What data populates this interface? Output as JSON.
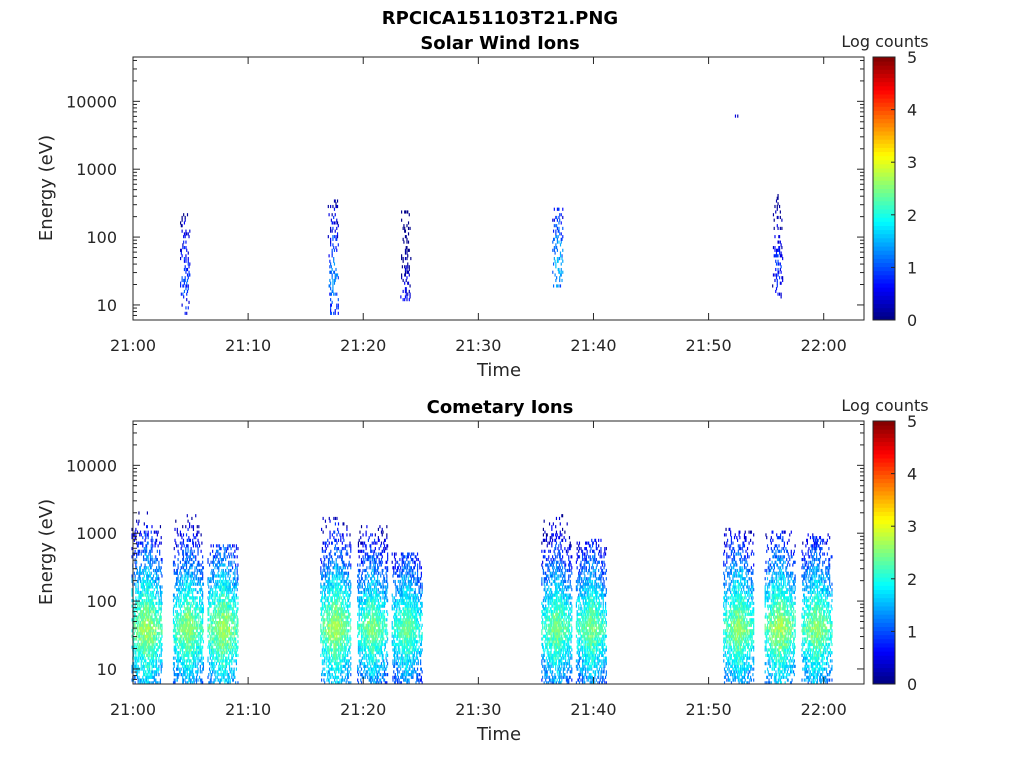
{
  "figure": {
    "title": "RPCICA151103T21.PNG"
  },
  "chart_data": [
    {
      "type": "heatmap",
      "title": "Solar Wind Ions",
      "xlabel": "Time",
      "ylabel": "Energy (eV)",
      "x_ticks": [
        "21:00",
        "21:10",
        "21:20",
        "21:30",
        "21:40",
        "21:50",
        "22:00"
      ],
      "x_range_minutes": [
        0,
        63.5
      ],
      "y_scale": "log",
      "y_ticks": [
        "10",
        "100",
        "1000",
        "10000"
      ],
      "y_range": [
        6,
        45000
      ],
      "grid": false,
      "colorbar": {
        "label": "Log counts",
        "range": [
          0,
          5
        ],
        "ticks": [
          "0",
          "1",
          "2",
          "3",
          "4",
          "5"
        ],
        "colormap": "jet"
      },
      "bursts": [
        {
          "t": 4.5,
          "e_min": 7,
          "e_max": 230,
          "peak_e": 25,
          "peak_log_counts": 1.2
        },
        {
          "t": 17.4,
          "e_min": 7,
          "e_max": 350,
          "peak_e": 25,
          "peak_log_counts": 1.5
        },
        {
          "t": 23.7,
          "e_min": 12,
          "e_max": 250,
          "peak_e": 14,
          "peak_log_counts": 0.7
        },
        {
          "t": 36.9,
          "e_min": 18,
          "e_max": 270,
          "peak_e": 40,
          "peak_log_counts": 1.7
        },
        {
          "t": 52.5,
          "e_min": 6000,
          "e_max": 6500,
          "peak_e": 6200,
          "peak_log_counts": 0.5
        },
        {
          "t": 56.0,
          "e_min": 12,
          "e_max": 420,
          "peak_e": 40,
          "peak_log_counts": 1.0
        }
      ]
    },
    {
      "type": "heatmap",
      "title": "Cometary Ions",
      "xlabel": "Time",
      "ylabel": "Energy (eV)",
      "x_ticks": [
        "21:00",
        "21:10",
        "21:20",
        "21:30",
        "21:40",
        "21:50",
        "22:00"
      ],
      "x_range_minutes": [
        0,
        63.5
      ],
      "y_scale": "log",
      "y_ticks": [
        "10",
        "100",
        "1000",
        "10000"
      ],
      "y_range": [
        6,
        45000
      ],
      "grid": false,
      "colorbar": {
        "label": "Log counts",
        "range": [
          0,
          5
        ],
        "ticks": [
          "0",
          "1",
          "2",
          "3",
          "4",
          "5"
        ],
        "colormap": "jet"
      },
      "bursts": [
        {
          "t": 1.2,
          "e_min": 6,
          "e_max": 2800,
          "peak_e": 40,
          "peak_log_counts": 2.8
        },
        {
          "t": 4.8,
          "e_min": 6,
          "e_max": 2000,
          "peak_e": 40,
          "peak_log_counts": 2.7
        },
        {
          "t": 7.8,
          "e_min": 6,
          "e_max": 700,
          "peak_e": 40,
          "peak_log_counts": 2.8
        },
        {
          "t": 17.6,
          "e_min": 6,
          "e_max": 1800,
          "peak_e": 40,
          "peak_log_counts": 2.8
        },
        {
          "t": 20.8,
          "e_min": 6,
          "e_max": 1300,
          "peak_e": 40,
          "peak_log_counts": 2.6
        },
        {
          "t": 23.8,
          "e_min": 6,
          "e_max": 500,
          "peak_e": 40,
          "peak_log_counts": 2.5
        },
        {
          "t": 36.8,
          "e_min": 6,
          "e_max": 2000,
          "peak_e": 40,
          "peak_log_counts": 2.6
        },
        {
          "t": 39.8,
          "e_min": 6,
          "e_max": 800,
          "peak_e": 40,
          "peak_log_counts": 2.6
        },
        {
          "t": 52.6,
          "e_min": 6,
          "e_max": 1200,
          "peak_e": 40,
          "peak_log_counts": 2.7
        },
        {
          "t": 56.2,
          "e_min": 6,
          "e_max": 1100,
          "peak_e": 40,
          "peak_log_counts": 2.8
        },
        {
          "t": 59.4,
          "e_min": 6,
          "e_max": 1000,
          "peak_e": 40,
          "peak_log_counts": 2.7
        }
      ]
    }
  ]
}
